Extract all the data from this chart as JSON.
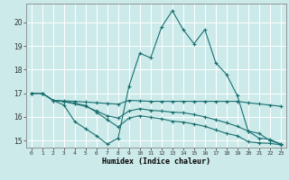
{
  "xlabel": "Humidex (Indice chaleur)",
  "background_color": "#cceaea",
  "grid_color": "#ffffff",
  "line_color": "#1a7070",
  "xlim": [
    -0.5,
    23.5
  ],
  "ylim": [
    14.7,
    20.8
  ],
  "yticks": [
    15,
    16,
    17,
    18,
    19,
    20
  ],
  "xticks": [
    0,
    1,
    2,
    3,
    4,
    5,
    6,
    7,
    8,
    9,
    10,
    11,
    12,
    13,
    14,
    15,
    16,
    17,
    18,
    19,
    20,
    21,
    22,
    23
  ],
  "series": [
    {
      "x": [
        0,
        1,
        2,
        3,
        4,
        5,
        6,
        7,
        8,
        9,
        10,
        11,
        12,
        13,
        14,
        15,
        16,
        17,
        18,
        19,
        20,
        21,
        22,
        23
      ],
      "y": [
        17.0,
        17.0,
        16.7,
        16.5,
        15.8,
        15.5,
        15.2,
        14.85,
        15.1,
        17.3,
        18.7,
        18.5,
        19.8,
        20.5,
        19.7,
        19.1,
        19.7,
        18.3,
        17.8,
        16.9,
        15.4,
        15.1,
        15.05,
        14.85
      ]
    },
    {
      "x": [
        0,
        1,
        2,
        3,
        4,
        5,
        6,
        7,
        8,
        9,
        10,
        11,
        12,
        13,
        14,
        15,
        16,
        17,
        18,
        19,
        20,
        21,
        22,
        23
      ],
      "y": [
        17.0,
        17.0,
        16.7,
        16.68,
        16.66,
        16.63,
        16.6,
        16.57,
        16.54,
        16.7,
        16.68,
        16.66,
        16.66,
        16.66,
        16.66,
        16.66,
        16.66,
        16.66,
        16.66,
        16.66,
        16.6,
        16.55,
        16.5,
        16.45
      ]
    },
    {
      "x": [
        0,
        1,
        2,
        3,
        4,
        5,
        6,
        7,
        8,
        9,
        10,
        11,
        12,
        13,
        14,
        15,
        16,
        17,
        18,
        19,
        20,
        21,
        22,
        23
      ],
      "y": [
        17.0,
        17.0,
        16.7,
        16.65,
        16.55,
        16.45,
        16.25,
        16.05,
        15.95,
        16.25,
        16.35,
        16.28,
        16.25,
        16.2,
        16.18,
        16.1,
        16.0,
        15.88,
        15.75,
        15.6,
        15.4,
        15.3,
        15.0,
        14.85
      ]
    },
    {
      "x": [
        0,
        1,
        2,
        3,
        4,
        5,
        6,
        7,
        8,
        9,
        10,
        11,
        12,
        13,
        14,
        15,
        16,
        17,
        18,
        19,
        20,
        21,
        22,
        23
      ],
      "y": [
        17.0,
        17.0,
        16.7,
        16.65,
        16.58,
        16.48,
        16.2,
        15.88,
        15.58,
        15.95,
        16.05,
        15.98,
        15.92,
        15.82,
        15.78,
        15.7,
        15.6,
        15.45,
        15.3,
        15.2,
        14.95,
        14.9,
        14.88,
        14.82
      ]
    }
  ]
}
